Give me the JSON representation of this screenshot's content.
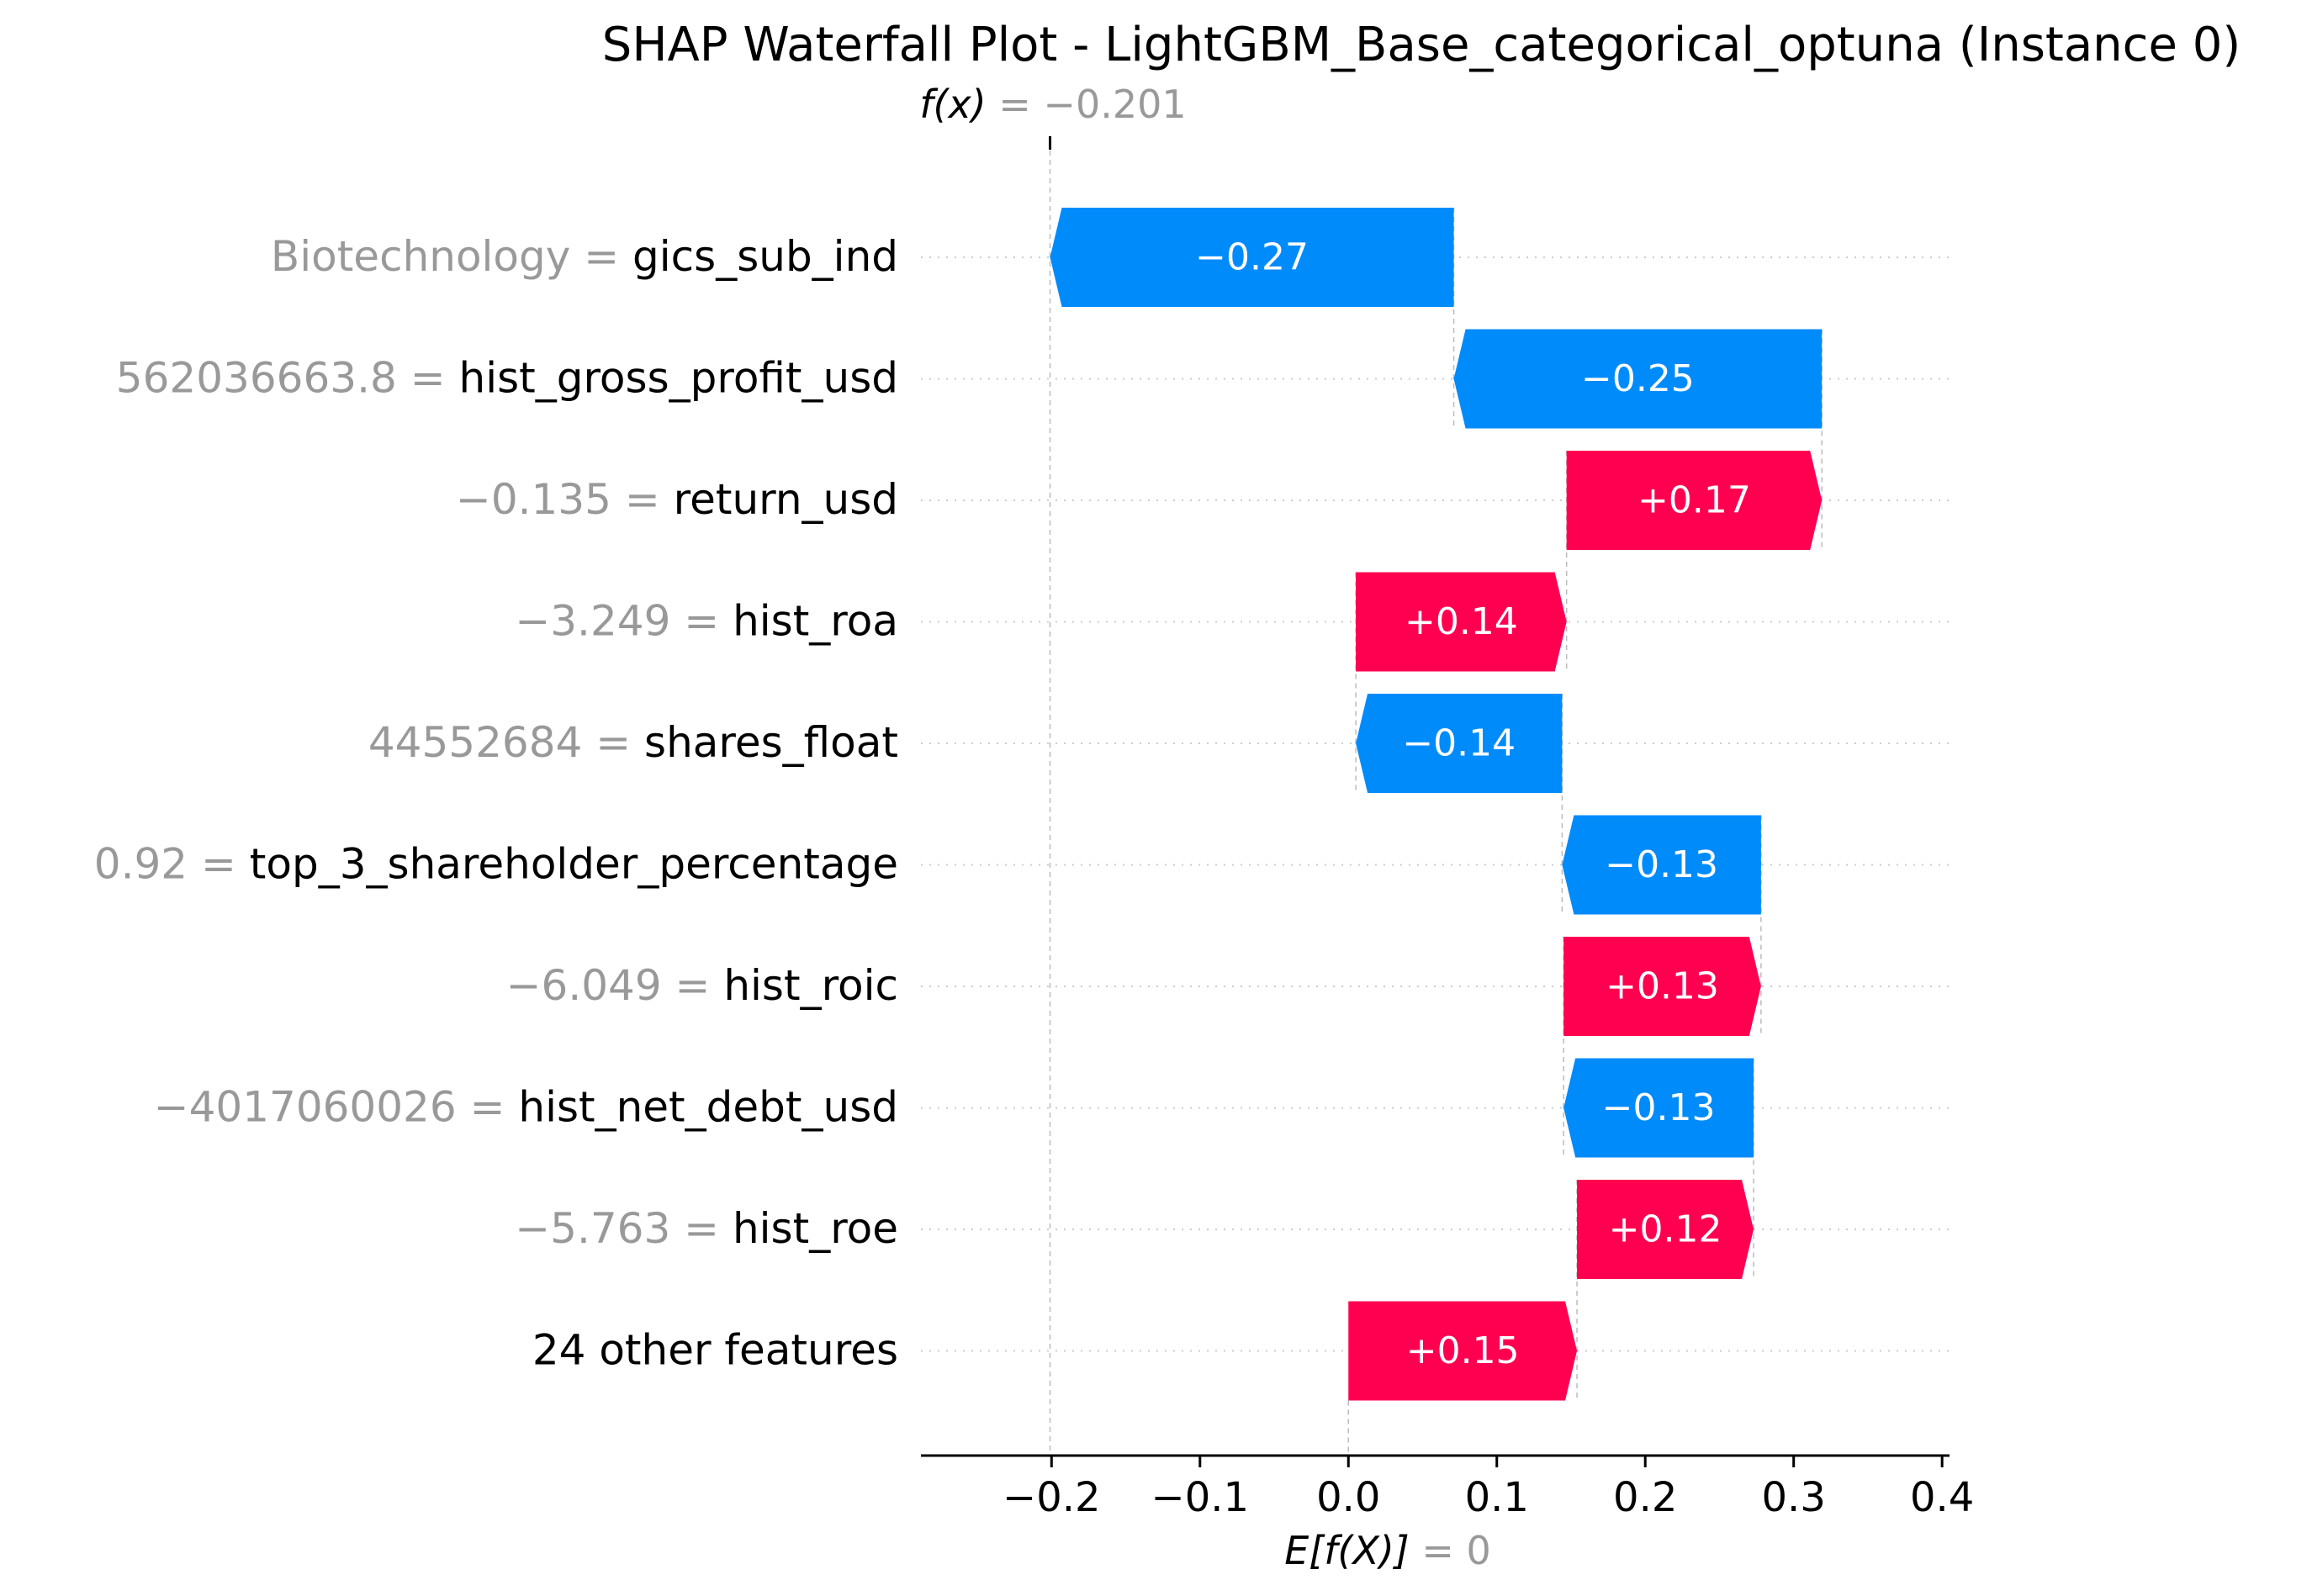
{
  "chart_data": {
    "type": "waterfall",
    "title": "SHAP Waterfall Plot - LightGBM_Base_categorical_optuna (Instance 0)",
    "fx": {
      "prefix": "f(x)",
      "value": -0.201,
      "value_label": " = −0.201"
    },
    "efx": {
      "prefix": "E[f(X)]",
      "value": 0,
      "value_label": " = 0"
    },
    "xlim": [
      -0.288,
      0.405
    ],
    "ticks": [
      -0.2,
      -0.1,
      0.0,
      0.1,
      0.2,
      0.3,
      0.4
    ],
    "tick_labels": [
      "−0.2",
      "−0.1",
      "0.0",
      "0.1",
      "0.2",
      "0.3",
      "0.4"
    ],
    "grid": true,
    "colors": {
      "positive": "#ff0051",
      "negative": "#008bfb",
      "feature_value": "#999999",
      "text": "#000000"
    },
    "features": [
      {
        "value_label": "Biotechnology",
        "sep": " = ",
        "name": "gics_sub_ind",
        "start": 0.071,
        "end": -0.201,
        "label": "−0.27"
      },
      {
        "value_label": "562036663.8",
        "sep": " = ",
        "name": "hist_gross_profit_usd",
        "start": 0.319,
        "end": 0.071,
        "label": "−0.25"
      },
      {
        "value_label": "−0.135",
        "sep": " = ",
        "name": "return_usd",
        "start": 0.147,
        "end": 0.319,
        "label": "+0.17"
      },
      {
        "value_label": "−3.249",
        "sep": " = ",
        "name": "hist_roa",
        "start": 0.005,
        "end": 0.147,
        "label": "+0.14"
      },
      {
        "value_label": "44552684",
        "sep": " = ",
        "name": "shares_float",
        "start": 0.144,
        "end": 0.005,
        "label": "−0.14"
      },
      {
        "value_label": "0.92",
        "sep": " = ",
        "name": "top_3_shareholder_percentage",
        "start": 0.278,
        "end": 0.144,
        "label": "−0.13"
      },
      {
        "value_label": "−6.049",
        "sep": " = ",
        "name": "hist_roic",
        "start": 0.145,
        "end": 0.278,
        "label": "+0.13"
      },
      {
        "value_label": "−4017060026",
        "sep": " = ",
        "name": "hist_net_debt_usd",
        "start": 0.273,
        "end": 0.145,
        "label": "−0.13"
      },
      {
        "value_label": "−5.763",
        "sep": " = ",
        "name": "hist_roe",
        "start": 0.154,
        "end": 0.273,
        "label": "+0.12"
      },
      {
        "value_label": "",
        "sep": "",
        "name": "24 other features",
        "start": 0.0,
        "end": 0.154,
        "label": "+0.15"
      }
    ]
  }
}
